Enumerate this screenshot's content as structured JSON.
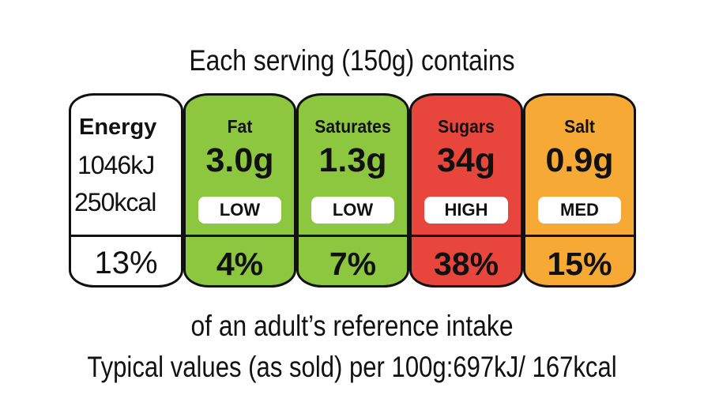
{
  "title": "Each serving (150g) contains",
  "energy": {
    "label": "Energy",
    "kj": "1046kJ",
    "kcal": "250kcal",
    "percent": "13%"
  },
  "nutrients": [
    {
      "name": "Fat",
      "amount": "3.0g",
      "level": "LOW",
      "percent": "4%",
      "color": "#8dc63f"
    },
    {
      "name": "Saturates",
      "amount": "1.3g",
      "level": "LOW",
      "percent": "7%",
      "color": "#8dc63f"
    },
    {
      "name": "Sugars",
      "amount": "34g",
      "level": "HIGH",
      "percent": "38%",
      "color": "#e8453c"
    },
    {
      "name": "Salt",
      "amount": "0.9g",
      "level": "MED",
      "percent": "15%",
      "color": "#f7a935"
    }
  ],
  "subtitle": "of an adult’s reference intake",
  "footer": "Typical values (as sold) per 100g:697kJ/ 167kcal"
}
